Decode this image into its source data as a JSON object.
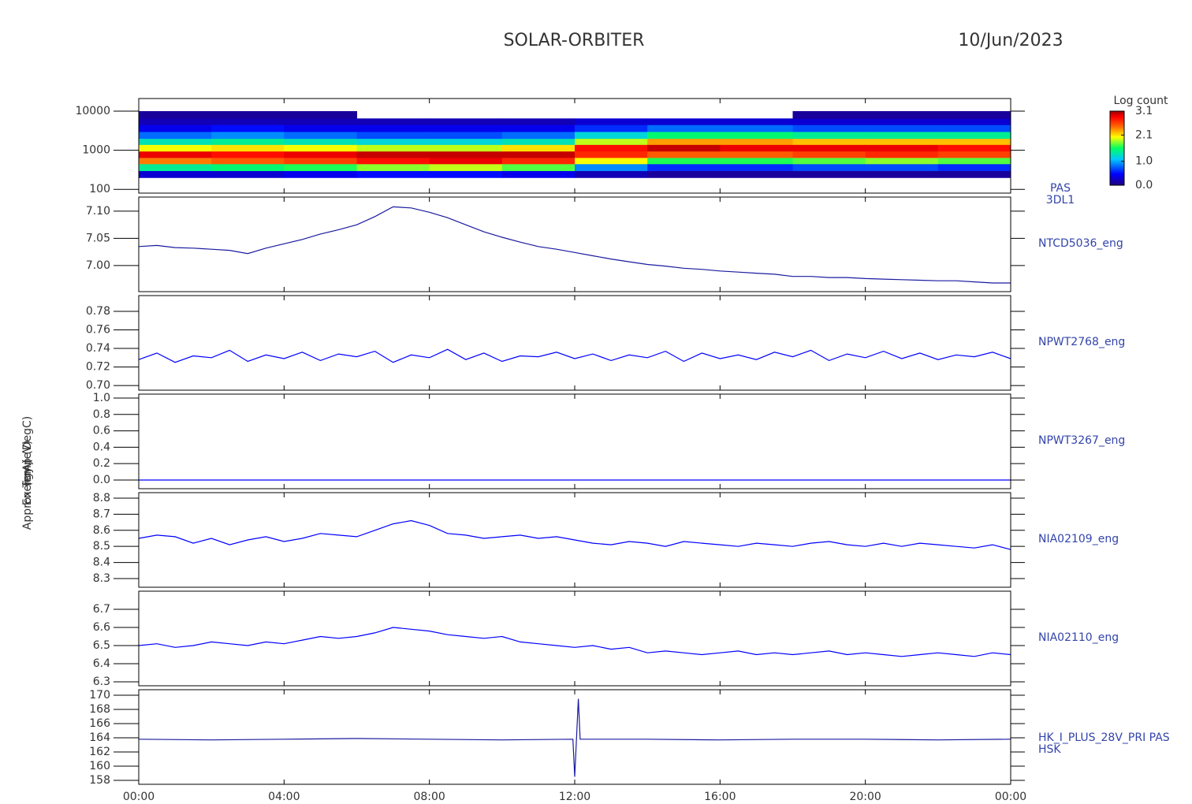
{
  "title": "SOLAR-ORBITER",
  "date": "10/Jun/2023",
  "chart_data": [
    {
      "type": "heatmap",
      "labels": [
        "PAS",
        "3DL1"
      ],
      "ylabel": "Energy (eV)",
      "ylog": true,
      "xlim": [
        0,
        24
      ],
      "ylim": [
        80,
        21000
      ],
      "yticks": [
        100,
        1000,
        10000
      ],
      "x_bins": [
        0,
        2,
        4,
        6,
        8,
        10,
        12,
        14,
        16,
        18,
        20,
        22,
        24
      ],
      "y_bins": [
        200,
        300,
        450,
        650,
        950,
        1400,
        2000,
        3000,
        4500,
        6500,
        10000
      ],
      "colorbar_title": "Log count",
      "zlim": [
        0,
        3.1
      ],
      "zticks": [
        {
          "value": 0,
          "label": "0.0"
        },
        {
          "value": 1,
          "label": "1.0"
        },
        2.1,
        3.1
      ],
      "values": [
        [
          0.3,
          1.4,
          2.4,
          2.9,
          2.0,
          1.3,
          0.8,
          0.4,
          0.2,
          0.1
        ],
        [
          0.3,
          1.5,
          2.5,
          2.8,
          2.1,
          1.4,
          0.9,
          0.5,
          0.2,
          0.1
        ],
        [
          0.4,
          1.6,
          2.6,
          2.9,
          2.0,
          1.3,
          0.8,
          0.4,
          0.2,
          0.1
        ],
        [
          0.5,
          1.8,
          2.8,
          3.0,
          1.9,
          1.2,
          0.7,
          0.4,
          0.2,
          null
        ],
        [
          0.5,
          1.9,
          2.9,
          3.0,
          1.9,
          1.2,
          0.7,
          0.4,
          0.2,
          null
        ],
        [
          0.4,
          1.7,
          2.7,
          3.0,
          2.1,
          1.3,
          0.8,
          0.4,
          0.2,
          null
        ],
        [
          0.2,
          0.9,
          2.0,
          2.7,
          2.8,
          1.9,
          1.2,
          0.6,
          0.3,
          null
        ],
        [
          0.1,
          0.6,
          1.6,
          2.5,
          3.0,
          2.3,
          1.5,
          0.8,
          0.3,
          null
        ],
        [
          0.1,
          0.6,
          1.6,
          2.5,
          2.9,
          2.3,
          1.5,
          0.8,
          0.3,
          null
        ],
        [
          0.1,
          0.7,
          1.7,
          2.6,
          2.9,
          2.2,
          1.4,
          0.7,
          0.3,
          0.1
        ],
        [
          0.1,
          0.7,
          1.8,
          2.7,
          2.9,
          2.2,
          1.4,
          0.7,
          0.3,
          0.1
        ],
        [
          0.1,
          0.6,
          1.7,
          2.6,
          2.8,
          2.2,
          1.4,
          0.7,
          0.3,
          0.1
        ]
      ]
    },
    {
      "type": "line",
      "labels": [
        "NTCD5036_eng"
      ],
      "ylabel": "Approx Temp (DegC)",
      "color": "#1a1aa0",
      "xlim": [
        0,
        24
      ],
      "ylim": [
        6.952,
        7.126
      ],
      "yticks": [
        {
          "value": 7.0,
          "label": "7.00"
        },
        7.05,
        {
          "value": 7.1,
          "label": "7.10"
        }
      ],
      "x": [
        0,
        0.5,
        1,
        1.5,
        2,
        2.5,
        3,
        3.5,
        4,
        4.5,
        5,
        5.5,
        6,
        6.5,
        7,
        7.5,
        8,
        8.5,
        9,
        9.5,
        10,
        10.5,
        11,
        11.5,
        12,
        12.5,
        13,
        13.5,
        14,
        14.5,
        15,
        15.5,
        16,
        16.5,
        17,
        17.5,
        18,
        18.5,
        19,
        19.5,
        20,
        20.5,
        21,
        21.5,
        22,
        22.5,
        23,
        23.5,
        24
      ],
      "values": [
        7.035,
        7.037,
        7.033,
        7.032,
        7.03,
        7.028,
        7.022,
        7.032,
        7.04,
        7.048,
        7.058,
        7.066,
        7.075,
        7.09,
        7.108,
        7.106,
        7.098,
        7.088,
        7.075,
        7.062,
        7.052,
        7.043,
        7.035,
        7.03,
        7.024,
        7.018,
        7.012,
        7.007,
        7.002,
        6.999,
        6.995,
        6.993,
        6.99,
        6.988,
        6.986,
        6.984,
        6.98,
        6.98,
        6.978,
        6.978,
        6.976,
        6.975,
        6.974,
        6.973,
        6.972,
        6.972,
        6.97,
        6.968,
        6.968
      ]
    },
    {
      "type": "line",
      "labels": [
        "NPWT2768_eng"
      ],
      "color": "#0000ff",
      "xlim": [
        0,
        24
      ],
      "ylim": [
        0.695,
        0.797
      ],
      "yticks": [
        {
          "value": 0.7,
          "label": "0.70"
        },
        0.72,
        0.74,
        0.76,
        0.78
      ],
      "x": [
        0,
        0.5,
        1,
        1.5,
        2,
        2.5,
        3,
        3.5,
        4,
        4.5,
        5,
        5.5,
        6,
        6.5,
        7,
        7.5,
        8,
        8.5,
        9,
        9.5,
        10,
        10.5,
        11,
        11.5,
        12,
        12.5,
        13,
        13.5,
        14,
        14.5,
        15,
        15.5,
        16,
        16.5,
        17,
        17.5,
        18,
        18.5,
        19,
        19.5,
        20,
        20.5,
        21,
        21.5,
        22,
        22.5,
        23,
        23.5,
        24
      ],
      "values": [
        0.728,
        0.735,
        0.725,
        0.732,
        0.73,
        0.738,
        0.726,
        0.733,
        0.729,
        0.736,
        0.727,
        0.734,
        0.731,
        0.737,
        0.725,
        0.733,
        0.73,
        0.739,
        0.728,
        0.735,
        0.726,
        0.732,
        0.731,
        0.736,
        0.729,
        0.734,
        0.727,
        0.733,
        0.73,
        0.737,
        0.726,
        0.735,
        0.729,
        0.733,
        0.728,
        0.736,
        0.731,
        0.738,
        0.727,
        0.734,
        0.73,
        0.737,
        0.729,
        0.735,
        0.728,
        0.733,
        0.731,
        0.736,
        0.729
      ]
    },
    {
      "type": "line",
      "labels": [
        "NPWT3267_eng"
      ],
      "color": "#0000ff",
      "xlim": [
        0,
        24
      ],
      "ylim": [
        -0.106,
        1.048
      ],
      "yticks": [
        {
          "value": 0,
          "label": "0.0"
        },
        0.2,
        0.4,
        0.6,
        0.8,
        {
          "value": 1,
          "label": "1.0"
        }
      ],
      "x": [
        0,
        0.5,
        1,
        1.5,
        2,
        2.5,
        3,
        3.5,
        4,
        4.5,
        5,
        5.5,
        6,
        6.5,
        7,
        7.5,
        8,
        8.5,
        9,
        9.5,
        10,
        10.5,
        11,
        11.5,
        12,
        12.5,
        13,
        13.5,
        14,
        14.5,
        15,
        15.5,
        16,
        16.5,
        17,
        17.5,
        18,
        18.5,
        19,
        19.5,
        20,
        20.5,
        21,
        21.5,
        22,
        22.5,
        23,
        23.5,
        24
      ],
      "values": [
        0,
        0,
        0,
        0,
        0,
        0,
        0,
        0,
        0,
        0,
        0,
        0,
        0,
        0,
        0,
        0,
        0,
        0,
        0,
        0,
        0,
        0,
        0,
        0,
        0,
        0,
        0,
        0,
        0,
        0,
        0,
        0,
        0,
        0,
        0,
        0,
        0,
        0,
        0,
        0,
        0,
        0,
        0,
        0,
        0,
        0,
        0,
        0,
        0
      ]
    },
    {
      "type": "line",
      "labels": [
        "NIA02109_eng"
      ],
      "color": "#0000ff",
      "xlim": [
        0,
        24
      ],
      "ylim": [
        8.246,
        8.834
      ],
      "yticks": [
        8.3,
        8.4,
        8.5,
        8.6,
        8.7,
        8.8
      ],
      "x": [
        0,
        0.5,
        1,
        1.5,
        2,
        2.5,
        3,
        3.5,
        4,
        4.5,
        5,
        5.5,
        6,
        6.5,
        7,
        7.5,
        8,
        8.5,
        9,
        9.5,
        10,
        10.5,
        11,
        11.5,
        12,
        12.5,
        13,
        13.5,
        14,
        14.5,
        15,
        15.5,
        16,
        16.5,
        17,
        17.5,
        18,
        18.5,
        19,
        19.5,
        20,
        20.5,
        21,
        21.5,
        22,
        22.5,
        23,
        23.5,
        24
      ],
      "values": [
        8.55,
        8.57,
        8.56,
        8.52,
        8.55,
        8.51,
        8.54,
        8.56,
        8.53,
        8.55,
        8.58,
        8.57,
        8.56,
        8.6,
        8.64,
        8.66,
        8.63,
        8.58,
        8.57,
        8.55,
        8.56,
        8.57,
        8.55,
        8.56,
        8.54,
        8.52,
        8.51,
        8.53,
        8.52,
        8.5,
        8.53,
        8.52,
        8.51,
        8.5,
        8.52,
        8.51,
        8.5,
        8.52,
        8.53,
        8.51,
        8.5,
        8.52,
        8.5,
        8.52,
        8.51,
        8.5,
        8.49,
        8.51,
        8.48
      ]
    },
    {
      "type": "line",
      "labels": [
        "NIA02110_eng"
      ],
      "color": "#0000ff",
      "xlim": [
        0,
        24
      ],
      "ylim": [
        6.278,
        6.8
      ],
      "yticks": [
        6.3,
        6.4,
        6.5,
        6.6,
        6.7
      ],
      "x": [
        0,
        0.5,
        1,
        1.5,
        2,
        2.5,
        3,
        3.5,
        4,
        4.5,
        5,
        5.5,
        6,
        6.5,
        7,
        7.5,
        8,
        8.5,
        9,
        9.5,
        10,
        10.5,
        11,
        11.5,
        12,
        12.5,
        13,
        13.5,
        14,
        14.5,
        15,
        15.5,
        16,
        16.5,
        17,
        17.5,
        18,
        18.5,
        19,
        19.5,
        20,
        20.5,
        21,
        21.5,
        22,
        22.5,
        23,
        23.5,
        24
      ],
      "values": [
        6.5,
        6.51,
        6.49,
        6.5,
        6.52,
        6.51,
        6.5,
        6.52,
        6.51,
        6.53,
        6.55,
        6.54,
        6.55,
        6.57,
        6.6,
        6.59,
        6.58,
        6.56,
        6.55,
        6.54,
        6.55,
        6.52,
        6.51,
        6.5,
        6.49,
        6.5,
        6.48,
        6.49,
        6.46,
        6.47,
        6.46,
        6.45,
        6.46,
        6.47,
        6.45,
        6.46,
        6.45,
        6.46,
        6.47,
        6.45,
        6.46,
        6.45,
        6.44,
        6.45,
        6.46,
        6.45,
        6.44,
        6.46,
        6.45
      ]
    },
    {
      "type": "line",
      "labels": [
        "HK_I_PLUS_28V_PRI PAS",
        "HSK"
      ],
      "ylabel": "(mA)",
      "color": "#1a1aa0",
      "xlim": [
        0,
        24
      ],
      "ylim": [
        157.44,
        170.78
      ],
      "yticks": [
        158,
        160,
        162,
        164,
        166,
        168,
        170
      ],
      "xticks": [
        {
          "value": 0,
          "label": "00:00"
        },
        {
          "value": 4,
          "label": "04:00"
        },
        {
          "value": 8,
          "label": "08:00"
        },
        {
          "value": 12,
          "label": "12:00"
        },
        {
          "value": 16,
          "label": "16:00"
        },
        {
          "value": 20,
          "label": "20:00"
        },
        {
          "value": 24,
          "label": "00:00"
        }
      ],
      "x": [
        0,
        2,
        4,
        6,
        8,
        10,
        11.95,
        12.0,
        12.1,
        12.15,
        14,
        16,
        18,
        20,
        22,
        24
      ],
      "values": [
        163.8,
        163.7,
        163.8,
        163.9,
        163.8,
        163.7,
        163.8,
        158.5,
        169.5,
        163.8,
        163.8,
        163.7,
        163.8,
        163.8,
        163.7,
        163.8
      ]
    }
  ]
}
